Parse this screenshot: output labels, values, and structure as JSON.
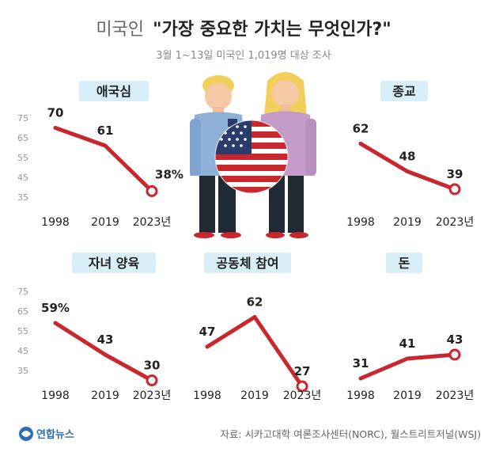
{
  "header": {
    "title_prefix": "미국인",
    "title_main": "\"가장 중요한 가치는 무엇인가?\"",
    "subtitle": "3월 1~13일 미국인 1,019명 대상 조사"
  },
  "footer": {
    "logo_text": "연합뉴스",
    "source": "자료: 시카고대학 여론조사센터(NORC), 월스트리트저널(WSJ)"
  },
  "colors": {
    "line": "#c8272e",
    "label_bg": "#d8eef8",
    "axis_tick": "#999999",
    "flag_red": "#c8272e",
    "flag_blue": "#2b3b6b"
  },
  "chart_data": [
    {
      "type": "line",
      "title": "애국심",
      "x": [
        "1998",
        "2019",
        "2023년"
      ],
      "y": [
        70,
        61,
        38
      ],
      "value_labels": [
        "70",
        "61",
        "38%"
      ],
      "y_ticks": [
        "75",
        "65",
        "55",
        "45",
        "35"
      ],
      "ylim": [
        35,
        75
      ]
    },
    {
      "type": "line",
      "title": "종교",
      "x": [
        "1998",
        "2019",
        "2023년"
      ],
      "y": [
        62,
        48,
        39
      ],
      "value_labels": [
        "62",
        "48",
        "39"
      ],
      "ylim": [
        35,
        75
      ]
    },
    {
      "type": "line",
      "title": "자녀 양육",
      "x": [
        "1998",
        "2019",
        "2023년"
      ],
      "y": [
        59,
        43,
        30
      ],
      "value_labels": [
        "59%",
        "43",
        "30"
      ],
      "y_ticks": [
        "75",
        "65",
        "55",
        "45",
        "35"
      ],
      "ylim": [
        35,
        75
      ]
    },
    {
      "type": "line",
      "title": "공동체 참여",
      "x": [
        "1998",
        "2019",
        "2023년"
      ],
      "y": [
        47,
        62,
        27
      ],
      "value_labels": [
        "47",
        "62",
        "27"
      ],
      "ylim": [
        35,
        75
      ]
    },
    {
      "type": "line",
      "title": "돈",
      "x": [
        "1998",
        "2019",
        "2023년"
      ],
      "y": [
        31,
        41,
        43
      ],
      "value_labels": [
        "31",
        "41",
        "43"
      ],
      "ylim": [
        35,
        75
      ]
    }
  ]
}
